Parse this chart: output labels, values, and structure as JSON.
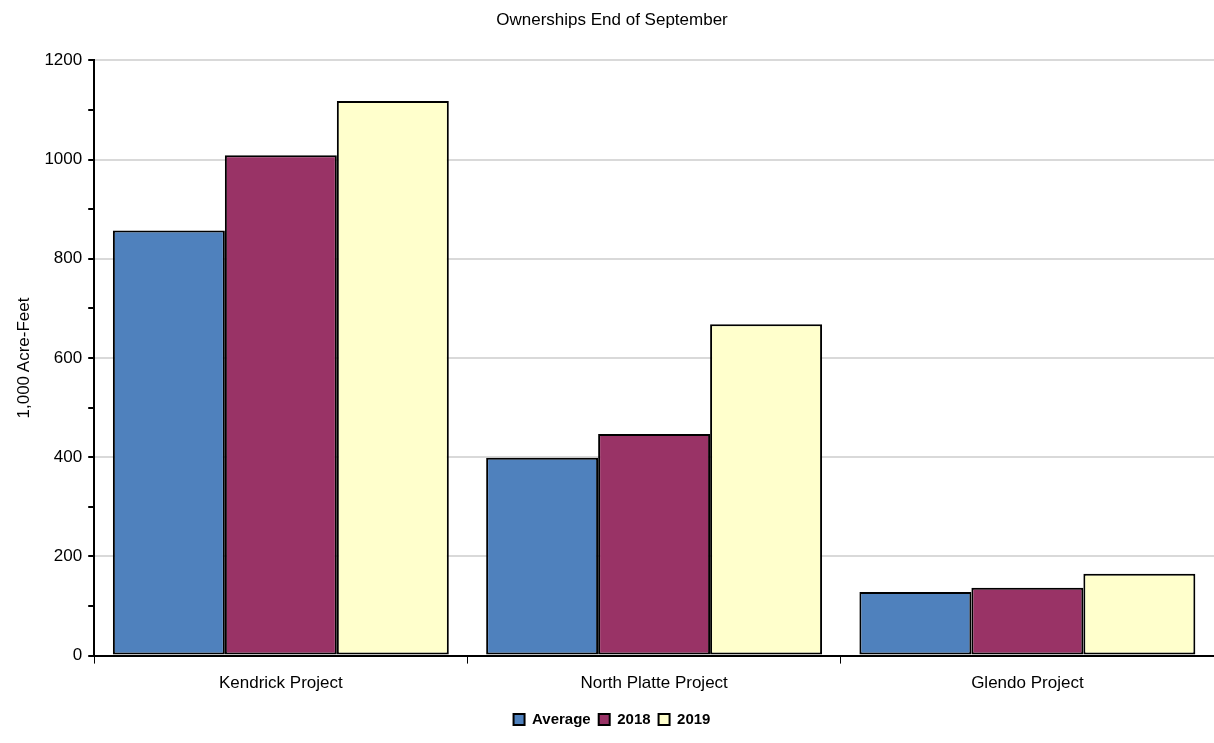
{
  "chart_data": {
    "type": "bar",
    "title": "Ownerships End of September",
    "ylabel": "1,000 Acre-Feet",
    "categories": [
      "Kendrick Project",
      "North Platte Project",
      "Glendo Project"
    ],
    "series": [
      {
        "name": "Average",
        "color": "#4f81bd",
        "values": [
          857,
          399,
          128
        ]
      },
      {
        "name": "2018",
        "color": "#993366",
        "values": [
          1009,
          447,
          137
        ]
      },
      {
        "name": "2019",
        "color": "#ffffcc",
        "values": [
          1118,
          668,
          165
        ]
      }
    ],
    "ylim": [
      0,
      1200
    ],
    "yticks": [
      0,
      {
        "value": 100,
        "label": null
      },
      200,
      {
        "value": 300,
        "label": null
      },
      400,
      {
        "value": 500,
        "label": null
      },
      600,
      {
        "value": 700,
        "label": null
      },
      800,
      {
        "value": 900,
        "label": null
      },
      1000,
      {
        "value": 1100,
        "label": null
      },
      1200
    ],
    "grid": "y",
    "legend": "bottom"
  }
}
